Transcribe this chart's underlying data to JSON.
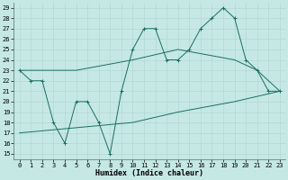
{
  "xlabel": "Humidex (Indice chaleur)",
  "xlim": [
    -0.5,
    23.5
  ],
  "ylim": [
    14.5,
    29.5
  ],
  "xticks": [
    0,
    1,
    2,
    3,
    4,
    5,
    6,
    7,
    8,
    9,
    10,
    11,
    12,
    13,
    14,
    15,
    16,
    17,
    18,
    19,
    20,
    21,
    22,
    23
  ],
  "yticks": [
    15,
    16,
    17,
    18,
    19,
    20,
    21,
    22,
    23,
    24,
    25,
    26,
    27,
    28,
    29
  ],
  "bg_color": "#c5e8e4",
  "grid_color": "#b0d4d0",
  "line_color": "#1a6e62",
  "zigzag_x": [
    0,
    1,
    2,
    3,
    4,
    5,
    6,
    7,
    8,
    9,
    10,
    11,
    12,
    13,
    14,
    15,
    16,
    17,
    18,
    19,
    20,
    21,
    22,
    23
  ],
  "zigzag_y": [
    23,
    22,
    22,
    18,
    16,
    20,
    20,
    18,
    15,
    21,
    25,
    27,
    27,
    24,
    24,
    25,
    27,
    28,
    29,
    28,
    24,
    23,
    21,
    21
  ],
  "upper_line_x": [
    0,
    5,
    10,
    14,
    19,
    21,
    23
  ],
  "upper_line_y": [
    23,
    23,
    24,
    25,
    24,
    23,
    21
  ],
  "lower_line_x": [
    0,
    5,
    10,
    14,
    19,
    23
  ],
  "lower_line_y": [
    17,
    17.5,
    18,
    19,
    20,
    21
  ],
  "font_family": "monospace",
  "tick_fontsize": 5,
  "xlabel_fontsize": 6
}
